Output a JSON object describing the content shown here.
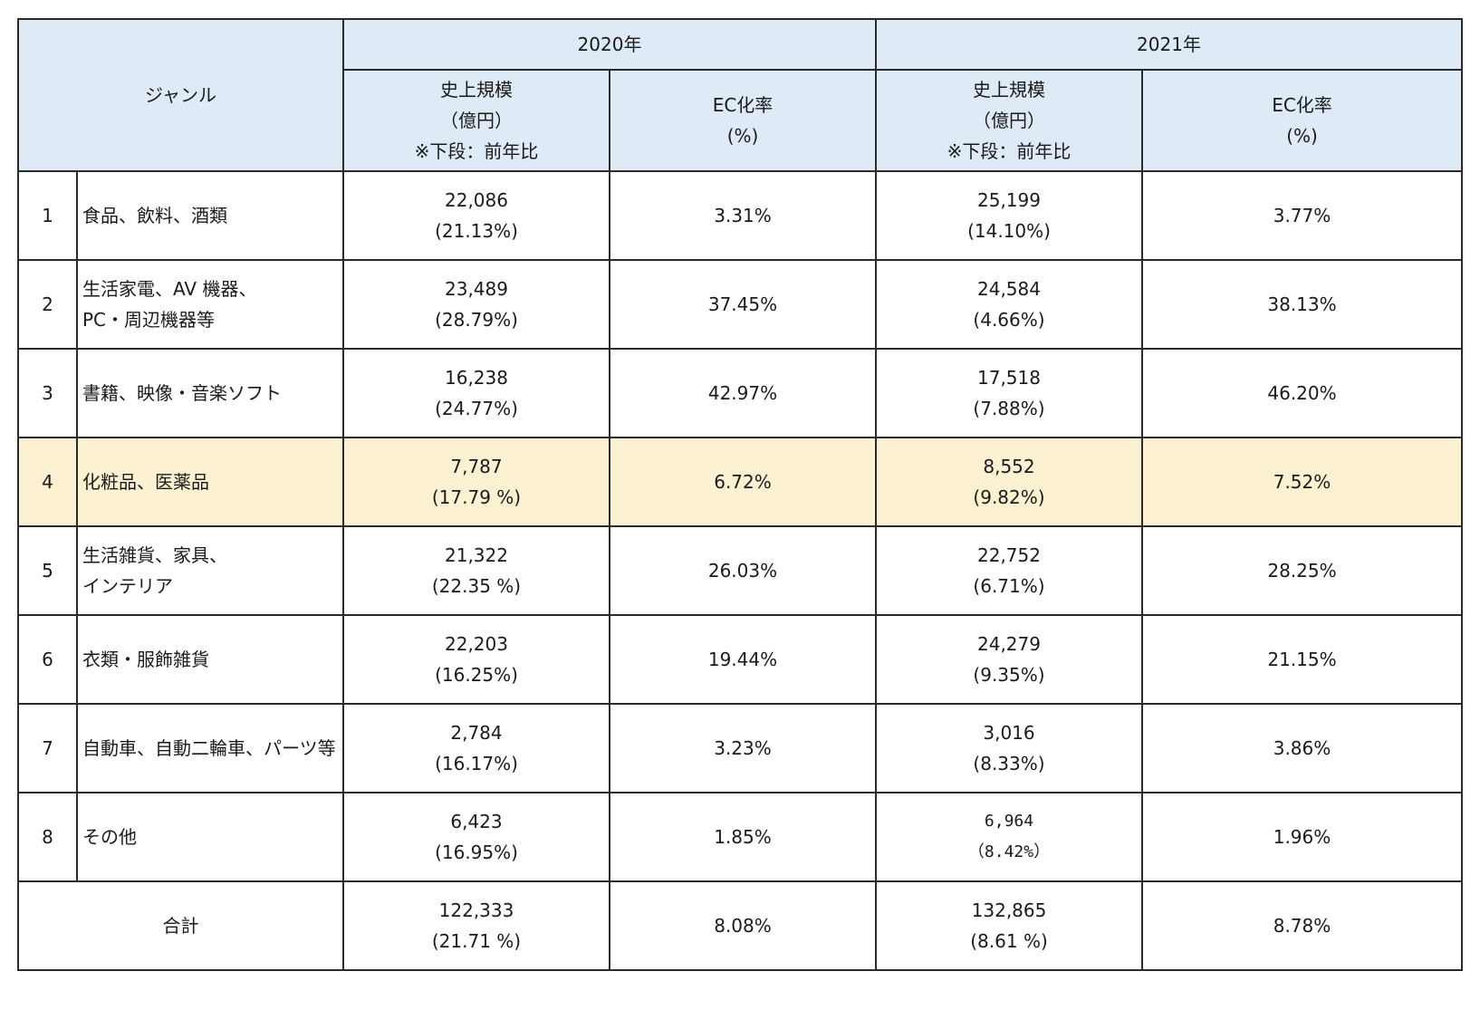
{
  "header": {
    "genre_label": "ジャンル",
    "year_2020": "2020年",
    "year_2021": "2021年",
    "market_size_line1": "史上規模",
    "market_size_line2": "（億円）",
    "market_size_line3": "※下段：前年比",
    "ec_rate_line1": "EC化率",
    "ec_rate_line2": "(%)"
  },
  "rows": [
    {
      "no": "1",
      "genre_line1": "食品、飲料、酒類",
      "genre_line2": "",
      "size_2020": "22,086",
      "growth_2020": "(21.13%)",
      "ec_2020": "3.31%",
      "size_2021": "25,199",
      "growth_2021": "(14.10%)",
      "ec_2021": "3.77%"
    },
    {
      "no": "2",
      "genre_line1": "生活家電、AV 機器、",
      "genre_line2": "PC・周辺機器等",
      "size_2020": "23,489",
      "growth_2020": "(28.79%)",
      "ec_2020": "37.45%",
      "size_2021": "24,584",
      "growth_2021": "(4.66%)",
      "ec_2021": "38.13%"
    },
    {
      "no": "3",
      "genre_line1": "書籍、映像・音楽ソフト",
      "genre_line2": "",
      "size_2020": "16,238",
      "growth_2020": "(24.77%)",
      "ec_2020": "42.97%",
      "size_2021": "17,518",
      "growth_2021": "(7.88%)",
      "ec_2021": "46.20%"
    },
    {
      "no": "4",
      "genre_line1": "化粧品、医薬品",
      "genre_line2": "",
      "size_2020": "7,787",
      "growth_2020": "(17.79 %)",
      "ec_2020": "6.72%",
      "size_2021": "8,552",
      "growth_2021": "(9.82%)",
      "ec_2021": "7.52%"
    },
    {
      "no": "5",
      "genre_line1": "生活雑貨、家具、",
      "genre_line2": "インテリア",
      "size_2020": "21,322",
      "growth_2020": "(22.35 %)",
      "ec_2020": "26.03%",
      "size_2021": "22,752",
      "growth_2021": "(6.71%)",
      "ec_2021": "28.25%"
    },
    {
      "no": "6",
      "genre_line1": "衣類・服飾雑貨",
      "genre_line2": "",
      "size_2020": "22,203",
      "growth_2020": "(16.25%)",
      "ec_2020": "19.44%",
      "size_2021": "24,279",
      "growth_2021": "(9.35%)",
      "ec_2021": "21.15%"
    },
    {
      "no": "7",
      "genre_line1": "自動車、自動二輪車、パーツ等",
      "genre_line2": "",
      "size_2020": "2,784",
      "growth_2020": "(16.17%)",
      "ec_2020": "3.23%",
      "size_2021": "3,016",
      "growth_2021": "(8.33%)",
      "ec_2021": "3.86%"
    },
    {
      "no": "8",
      "genre_line1": "その他",
      "genre_line2": "",
      "size_2020": "6,423",
      "growth_2020": "(16.95%)",
      "ec_2020": "1.85%",
      "size_2021": "6,964",
      "growth_2021": "（8.42%）",
      "ec_2021": "1.96%"
    }
  ],
  "total": {
    "label": "合計",
    "size_2020": "122,333",
    "growth_2020": "(21.71 %)",
    "ec_2020": "8.08%",
    "size_2021": "132,865",
    "growth_2021": "(8.61 %)",
    "ec_2021": "8.78%"
  },
  "highlight_row": "4",
  "colors": {
    "header_bg": "#deeaf5",
    "highlight_bg": "#fcf2d2",
    "border": "#2a2a2a"
  }
}
